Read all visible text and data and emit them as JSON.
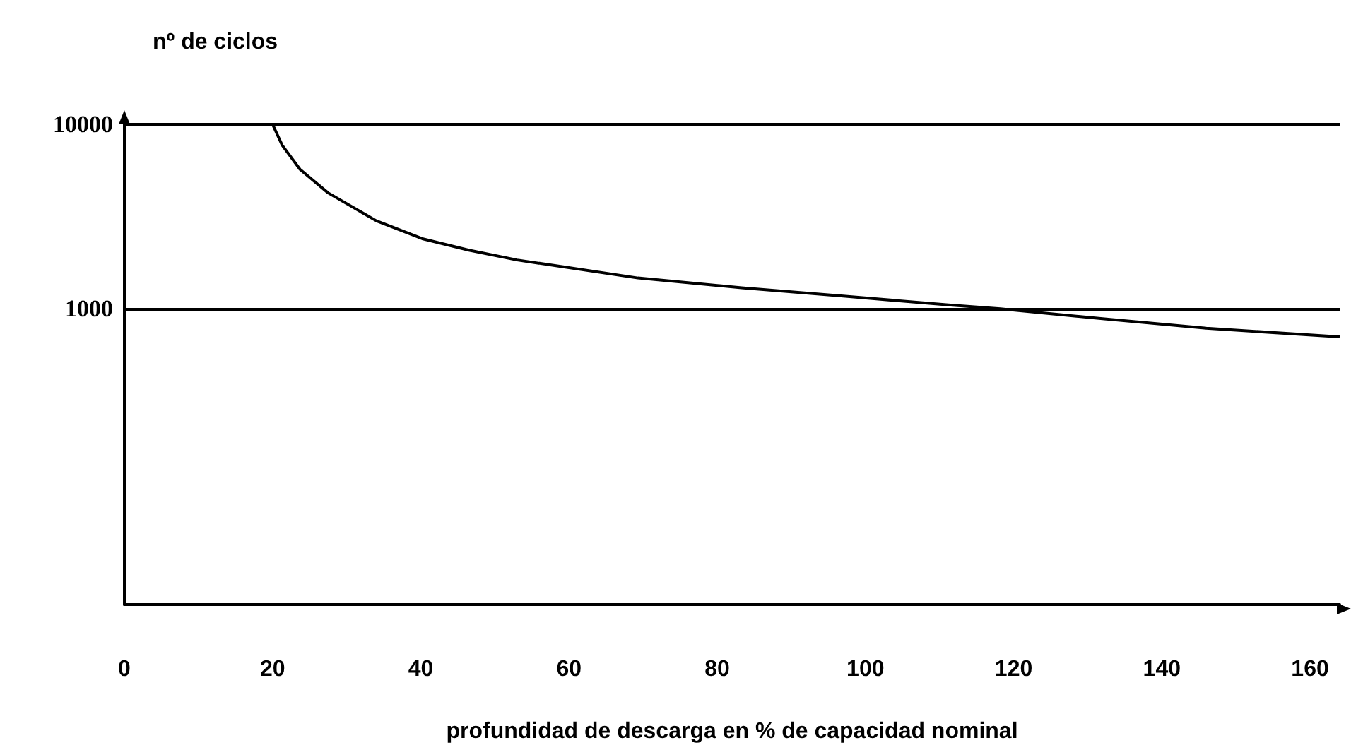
{
  "chart_data": {
    "type": "line",
    "xlabel": "profundidad de descarga en % de capacidad nominal",
    "ylabel": "nº de ciclos",
    "x": [
      20,
      21.3,
      23.7,
      27.5,
      34,
      40.2,
      46.5,
      53,
      59.2,
      69.3,
      83.3,
      97.3,
      111.2,
      118.2,
      132,
      146,
      164
    ],
    "series": [
      {
        "color": "#000000",
        "values": [
          10000,
          7700,
          5700,
          4250,
          3000,
          2400,
          2080,
          1840,
          1690,
          1470,
          1300,
          1170,
          1050,
          1000,
          885,
          785,
          705
        ]
      }
    ],
    "xlim": [
      0,
      164
    ],
    "xticks": [
      0,
      20,
      40,
      60,
      80,
      100,
      120,
      140,
      160
    ],
    "ylim": [
      25,
      10000
    ],
    "yticks": [
      1000,
      10000
    ],
    "log": "y",
    "grid": "y",
    "marker": "none",
    "line_style": "solid"
  }
}
